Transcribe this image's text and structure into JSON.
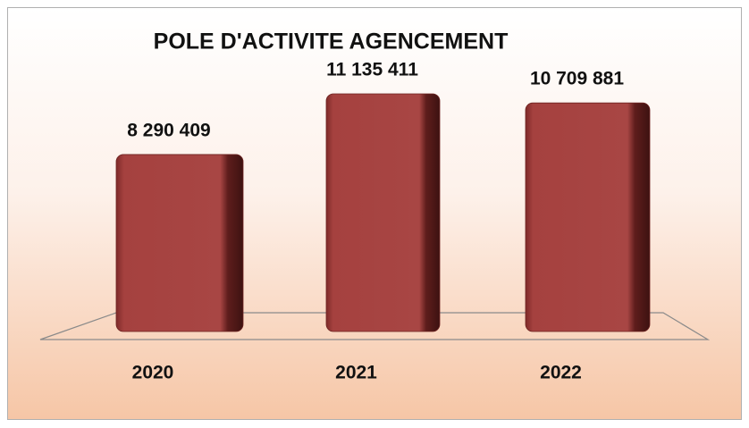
{
  "chart_data": {
    "type": "bar",
    "title": "POLE D'ACTIVITE AGENCEMENT",
    "categories": [
      "2020",
      "2021",
      "2022"
    ],
    "values": [
      8290409,
      11135411,
      10709881
    ],
    "value_labels": [
      "8 290 409",
      "11 135 411",
      "10 709 881"
    ],
    "color": "#a5413f"
  }
}
